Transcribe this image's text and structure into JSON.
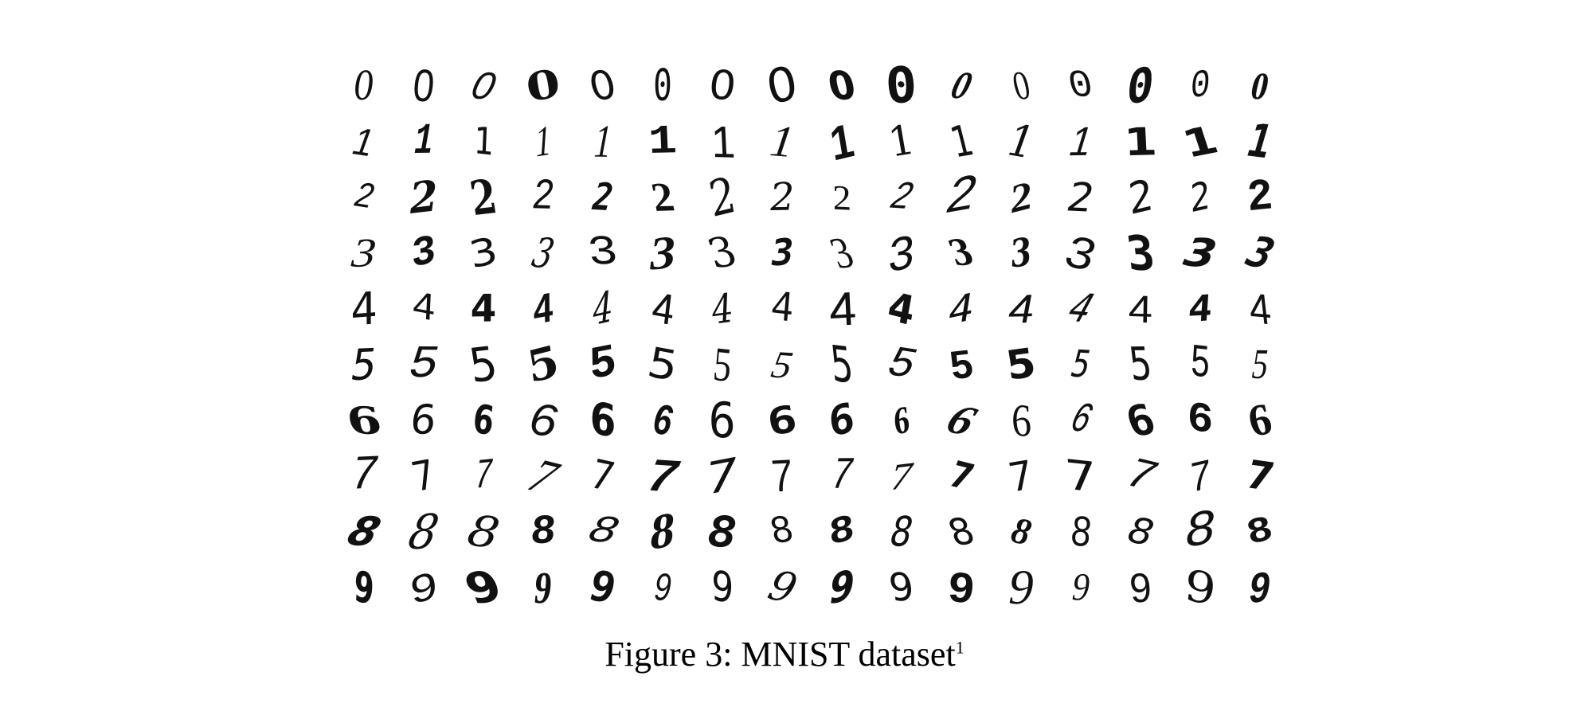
{
  "figure": {
    "caption_text": "Figure 3: MNIST dataset",
    "footnote_mark": "1",
    "ink_color": "#111111",
    "rows": [
      {
        "digit": "0",
        "samples": 16
      },
      {
        "digit": "1",
        "samples": 16
      },
      {
        "digit": "2",
        "samples": 16
      },
      {
        "digit": "3",
        "samples": 16
      },
      {
        "digit": "4",
        "samples": 16
      },
      {
        "digit": "5",
        "samples": 16
      },
      {
        "digit": "6",
        "samples": 16
      },
      {
        "digit": "7",
        "samples": 16
      },
      {
        "digit": "8",
        "samples": 16
      },
      {
        "digit": "9",
        "samples": 16
      }
    ]
  }
}
